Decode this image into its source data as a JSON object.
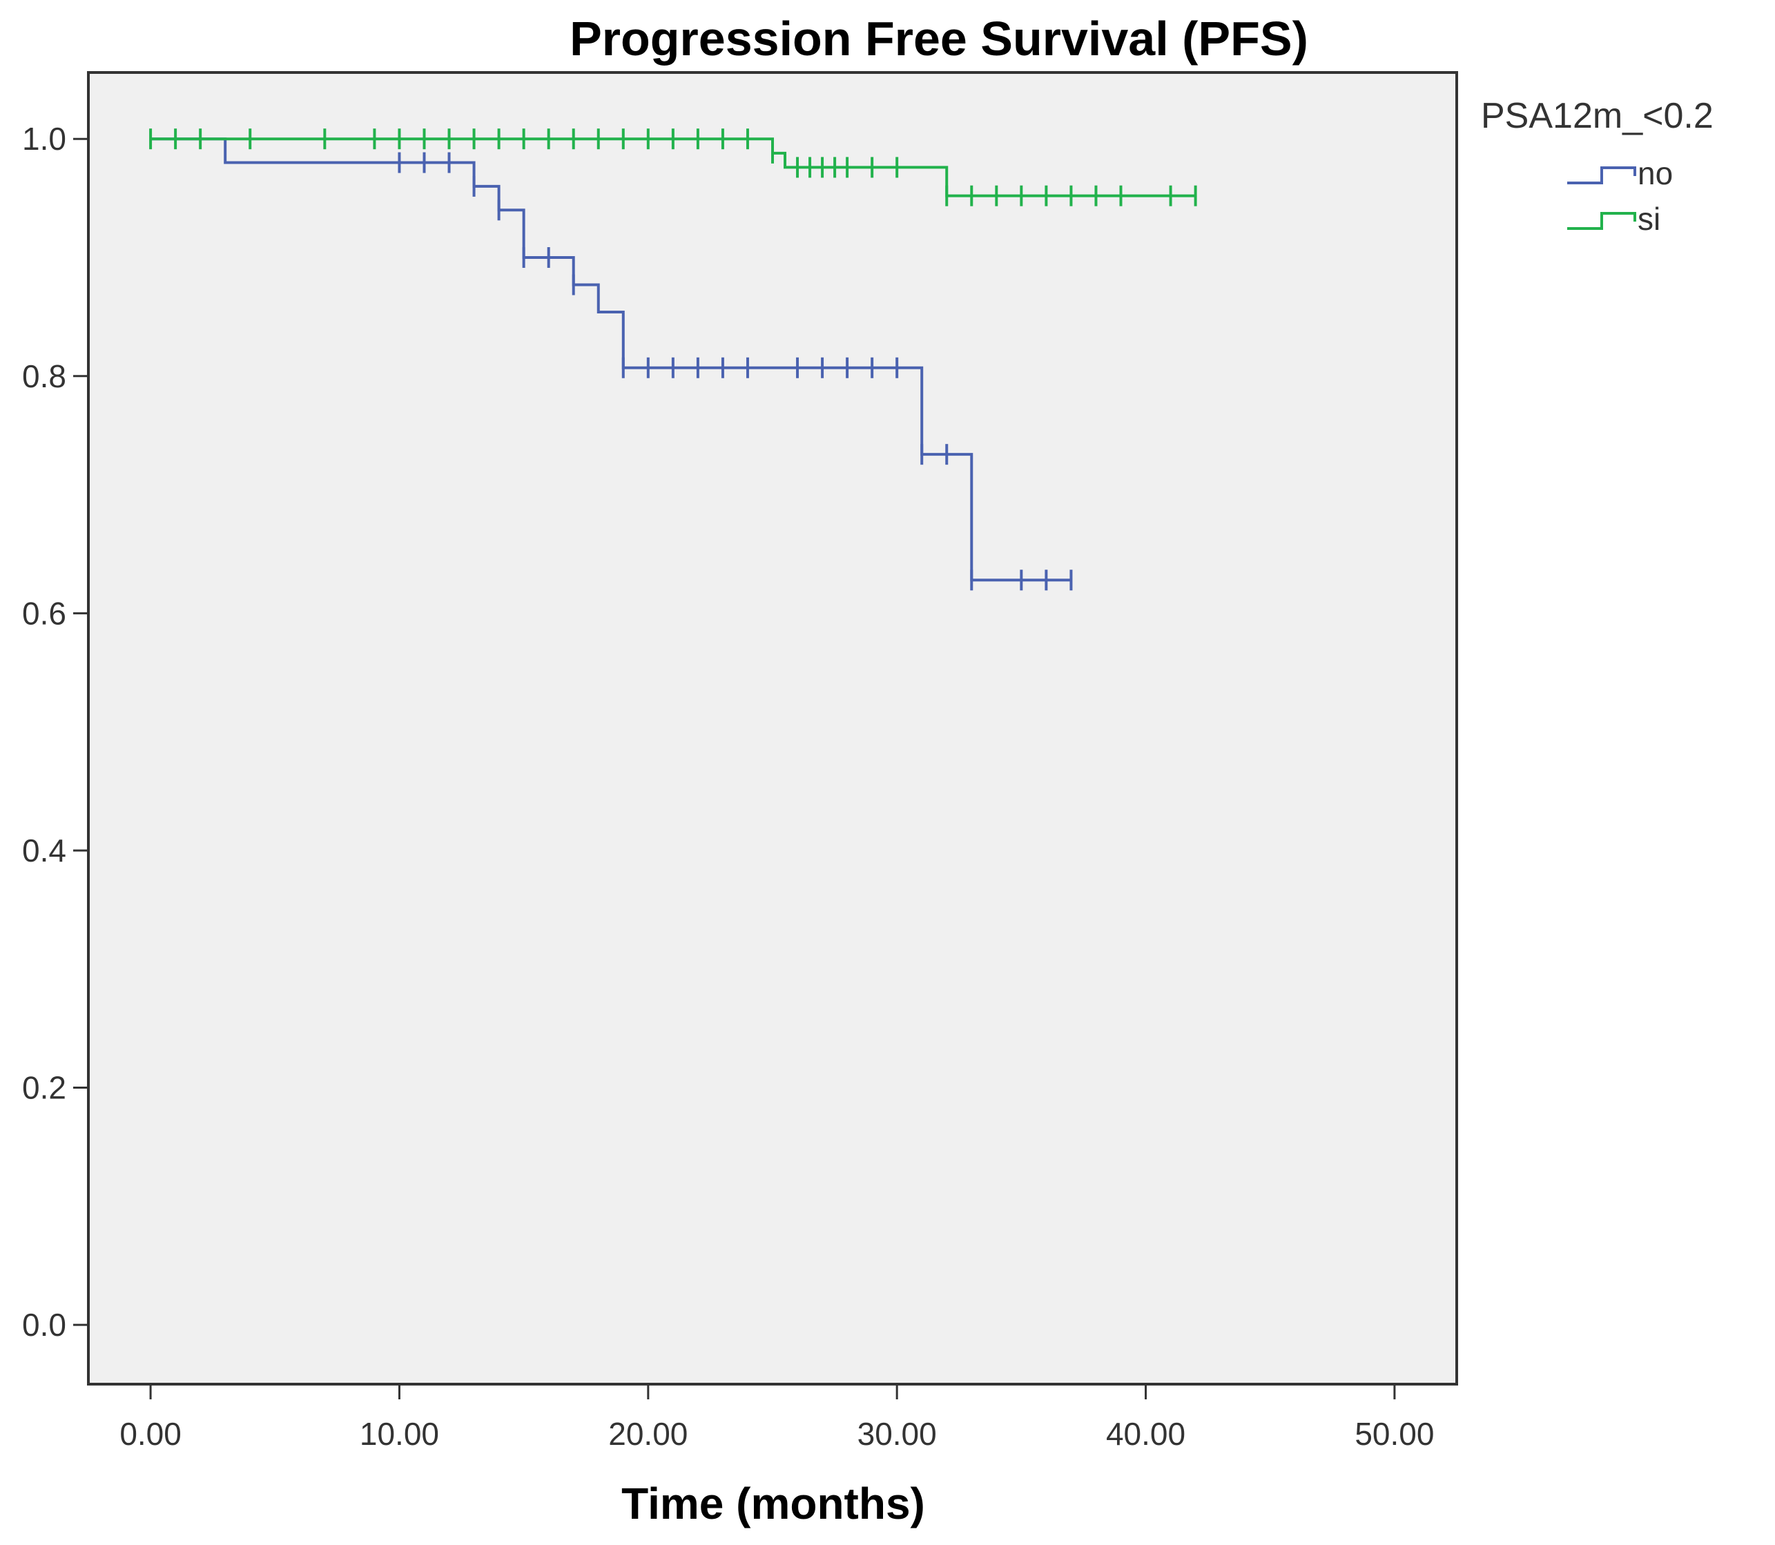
{
  "chart_data": {
    "type": "line",
    "subtype": "kaplan-meier",
    "title": "Progression Free Survival (PFS)",
    "xlabel": "Time (months)",
    "ylabel": "",
    "xlim": [
      -2.5,
      52.5
    ],
    "ylim": [
      -0.05,
      1.056
    ],
    "x_ticks": [
      0,
      10,
      20,
      30,
      40,
      50
    ],
    "x_tick_labels": [
      "0.00",
      "10.00",
      "20.00",
      "30.00",
      "40.00",
      "50.00"
    ],
    "y_ticks": [
      0.0,
      0.2,
      0.4,
      0.6,
      0.8,
      1.0
    ],
    "y_tick_labels": [
      "0.0",
      "0.2",
      "0.4",
      "0.6",
      "0.8",
      "1.0"
    ],
    "grid": false,
    "background": "#f0f0f0",
    "legend": {
      "title": "PSA12m_<0.2",
      "position": "right"
    },
    "series": [
      {
        "name": "no",
        "color": "#4a62b0",
        "steps": [
          [
            0,
            1.0
          ],
          [
            3,
            0.98
          ],
          [
            13,
            0.96
          ],
          [
            14,
            0.94
          ],
          [
            15,
            0.9
          ],
          [
            17,
            0.877
          ],
          [
            18,
            0.854
          ],
          [
            19,
            0.807
          ],
          [
            31,
            0.734
          ],
          [
            33,
            0.628
          ]
        ],
        "end_x": 37,
        "censored": [
          [
            10,
            0.98
          ],
          [
            11,
            0.98
          ],
          [
            12,
            0.98
          ],
          [
            13,
            0.96
          ],
          [
            14,
            0.94
          ],
          [
            15,
            0.9
          ],
          [
            16,
            0.9
          ],
          [
            17,
            0.877
          ],
          [
            19,
            0.807
          ],
          [
            20,
            0.807
          ],
          [
            21,
            0.807
          ],
          [
            22,
            0.807
          ],
          [
            23,
            0.807
          ],
          [
            24,
            0.807
          ],
          [
            26,
            0.807
          ],
          [
            27,
            0.807
          ],
          [
            28,
            0.807
          ],
          [
            29,
            0.807
          ],
          [
            30,
            0.807
          ],
          [
            31,
            0.734
          ],
          [
            32,
            0.734
          ],
          [
            33,
            0.628
          ],
          [
            35,
            0.628
          ],
          [
            36,
            0.628
          ],
          [
            37,
            0.628
          ]
        ]
      },
      {
        "name": "si",
        "color": "#22b24c",
        "steps": [
          [
            0,
            1.0
          ],
          [
            25,
            0.988
          ],
          [
            25.5,
            0.976
          ],
          [
            32,
            0.952
          ]
        ],
        "end_x": 42,
        "censored": [
          [
            0,
            1.0
          ],
          [
            1,
            1.0
          ],
          [
            2,
            1.0
          ],
          [
            4,
            1.0
          ],
          [
            7,
            1.0
          ],
          [
            9,
            1.0
          ],
          [
            10,
            1.0
          ],
          [
            11,
            1.0
          ],
          [
            12,
            1.0
          ],
          [
            13,
            1.0
          ],
          [
            14,
            1.0
          ],
          [
            15,
            1.0
          ],
          [
            16,
            1.0
          ],
          [
            17,
            1.0
          ],
          [
            18,
            1.0
          ],
          [
            19,
            1.0
          ],
          [
            20,
            1.0
          ],
          [
            21,
            1.0
          ],
          [
            22,
            1.0
          ],
          [
            23,
            1.0
          ],
          [
            24,
            1.0
          ],
          [
            25,
            0.988
          ],
          [
            26,
            0.976
          ],
          [
            26.5,
            0.976
          ],
          [
            27,
            0.976
          ],
          [
            27.5,
            0.976
          ],
          [
            28,
            0.976
          ],
          [
            29,
            0.976
          ],
          [
            30,
            0.976
          ],
          [
            32,
            0.952
          ],
          [
            33,
            0.952
          ],
          [
            34,
            0.952
          ],
          [
            35,
            0.952
          ],
          [
            36,
            0.952
          ],
          [
            37,
            0.952
          ],
          [
            38,
            0.952
          ],
          [
            39,
            0.952
          ],
          [
            41,
            0.952
          ],
          [
            42,
            0.952
          ]
        ]
      }
    ]
  }
}
